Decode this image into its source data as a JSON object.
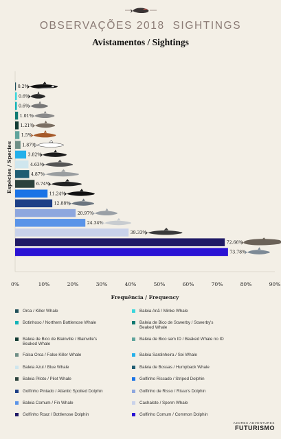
{
  "header": {
    "title": "OBSERVAÇÕES 2018  SIGHTINGS",
    "subtitle": "Avistamentos / Sightings"
  },
  "chart_data": {
    "type": "bar",
    "orientation": "horizontal",
    "title": "Avistamentos / Sightings",
    "xlabel": "Frequência / Frequency",
    "ylabel": "Espécies / Species",
    "xlim": [
      0,
      90
    ],
    "x_ticks": [
      "0%",
      "10%",
      "20%",
      "30%",
      "40%",
      "50%",
      "60%",
      "70%",
      "80%",
      "90%"
    ],
    "grid": false,
    "legend_position": "bottom",
    "series": [
      {
        "name": "Orca / Killer Whale",
        "value": 0.2,
        "label": "0.2%",
        "color": "#1f4f5a"
      },
      {
        "name": "Baleia Anã / Minke Whale",
        "value": 0.6,
        "label": "0.6%",
        "color": "#3bd6dc"
      },
      {
        "name": "Botinhoso / Northern Bottlenose Whale",
        "value": 0.6,
        "label": "0.6%",
        "color": "#12b3b8"
      },
      {
        "name": "Baleia de Bico de Sowerby / Sowerby's Beaked Whale",
        "value": 1.01,
        "label": "1.01%",
        "color": "#107a72"
      },
      {
        "name": "Baleia de Bico de Blainville / Blainville's Beaked Whale",
        "value": 1.21,
        "label": "1.21%",
        "color": "#123b33"
      },
      {
        "name": "Baleia de Bico sem ID / Beaked Whale no ID",
        "value": 1.5,
        "label": "1.5%",
        "color": "#5fa49c"
      },
      {
        "name": "Falsa Orca / False Killer Whale",
        "value": 1.87,
        "label": "1.87%",
        "color": "#6f8f86"
      },
      {
        "name": "Baleia Sardinheira / Sei Whale",
        "value": 3.82,
        "label": "3.82%",
        "color": "#25b0ea"
      },
      {
        "name": "Baleia Azul / Blue Whale",
        "value": 4.63,
        "label": "4.63%",
        "color": "#cfe6ee"
      },
      {
        "name": "Baleia de Bossas / Humpback Whale",
        "value": 4.87,
        "label": "4.87%",
        "color": "#1f5d73"
      },
      {
        "name": "Baleia Piloto / Pilot Whale",
        "value": 6.74,
        "label": "6.74%",
        "color": "#2c423c"
      },
      {
        "name": "Golfinho Riscado / Striped Dolphin",
        "value": 11.24,
        "label": "11.24%",
        "color": "#1a73e6"
      },
      {
        "name": "Golfinho Pintado / Atlantic Spotted Dolphin",
        "value": 12.88,
        "label": "12.88%",
        "color": "#1d3f86"
      },
      {
        "name": "Golfinho de Risso / Risso's Dolphin",
        "value": 20.97,
        "label": "20.97%",
        "color": "#8ea7de"
      },
      {
        "name": "Baleia Comum / Fin Whale",
        "value": 24.34,
        "label": "24.34%",
        "color": "#5a94e8"
      },
      {
        "name": "Cachalote / Sperm Whale",
        "value": 39.33,
        "label": "39.33%",
        "color": "#c9d2ea"
      },
      {
        "name": "Golfinho Roaz / Bottlenose Dolphin",
        "value": 72.66,
        "label": "72.66%",
        "color": "#201a66"
      },
      {
        "name": "Golfinho Comum / Common Dolphin",
        "value": 73.78,
        "label": "73.78%",
        "color": "#2a12d4"
      }
    ]
  },
  "footer": {
    "logo_top": "AZORES ADVENTURES",
    "logo_main": "FUTURISMO"
  }
}
